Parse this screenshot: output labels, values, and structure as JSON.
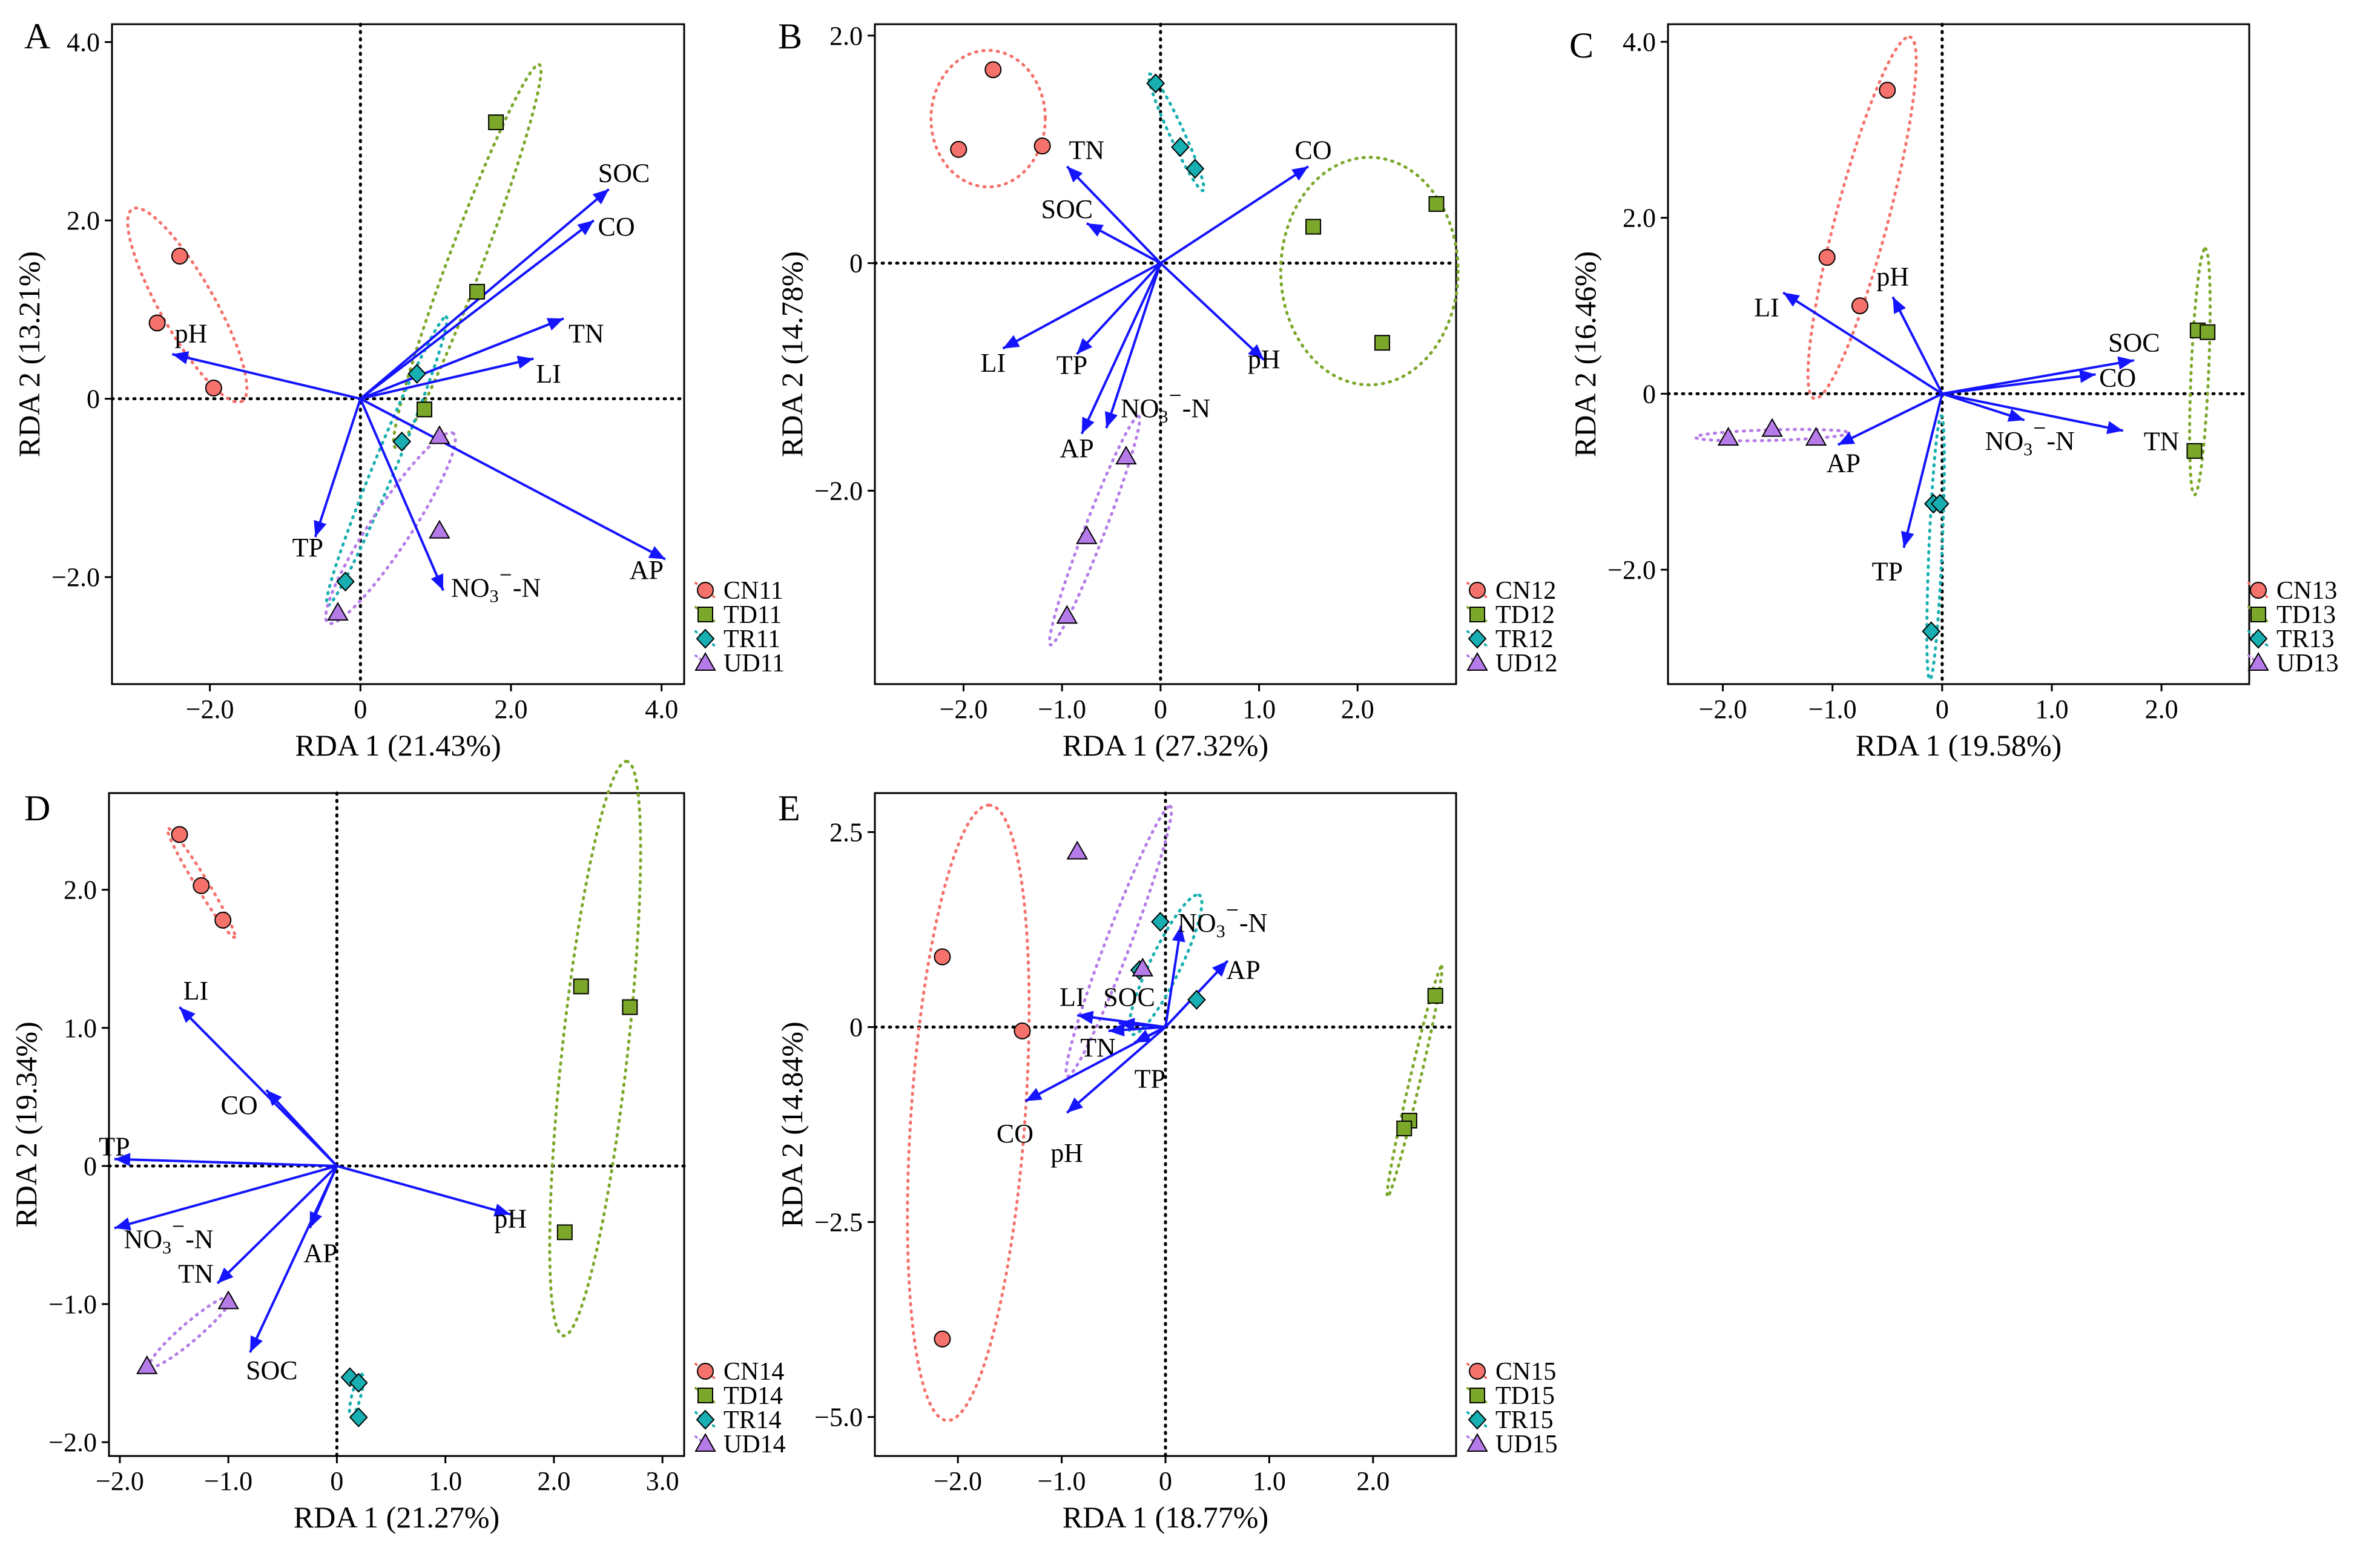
{
  "colors": {
    "CN": "#F4726B",
    "TD": "#7BA82A",
    "TR": "#17AFB1",
    "UD": "#B57BE8",
    "arrow": "#1414FF",
    "axis": "#000000"
  },
  "chart_data": [
    {
      "type": "scatter",
      "panel": "A",
      "xlabel": "RDA 1 (21.43%)",
      "ylabel": "RDA 2 (13.21%)",
      "xlim": [
        -3.3,
        4.3
      ],
      "ylim": [
        -3.2,
        4.2
      ],
      "xticks": [
        -2.0,
        0,
        2.0,
        4.0
      ],
      "xtick_labels": [
        "−2.0",
        "0",
        "2.0",
        "4.0"
      ],
      "yticks": [
        -2.0,
        0,
        2.0,
        4.0
      ],
      "ytick_labels": [
        "−2.0",
        "0",
        "2.0",
        "4.0"
      ],
      "legend": [
        "CN11",
        "TD11",
        "TR11",
        "UD11"
      ],
      "legend_position": "bottom-right outside",
      "groups": [
        {
          "name": "CN11",
          "group": "CN",
          "points": [
            [
              -2.4,
              1.6
            ],
            [
              -2.7,
              0.85
            ],
            [
              -1.95,
              0.12
            ]
          ],
          "ellipse": {
            "cx": -2.3,
            "cy": 1.05,
            "rx": 1.3,
            "ry": 0.34,
            "angle": -56
          }
        },
        {
          "name": "TD11",
          "group": "TD",
          "points": [
            [
              1.8,
              3.1
            ],
            [
              1.55,
              1.2
            ],
            [
              0.85,
              -0.12
            ]
          ],
          "ellipse": {
            "cx": 1.42,
            "cy": 1.6,
            "rx": 2.35,
            "ry": 0.22,
            "angle": 66
          }
        },
        {
          "name": "TR11",
          "group": "TR",
          "points": [
            [
              0.75,
              0.28
            ],
            [
              0.55,
              -0.48
            ],
            [
              -0.2,
              -2.05
            ]
          ],
          "ellipse": {
            "cx": 0.35,
            "cy": -0.7,
            "rx": 1.8,
            "ry": 0.14,
            "angle": 64
          }
        },
        {
          "name": "UD11",
          "group": "UD",
          "points": [
            [
              1.05,
              -0.42
            ],
            [
              1.05,
              -1.48
            ],
            [
              -0.3,
              -2.4
            ]
          ],
          "ellipse": {
            "cx": 0.4,
            "cy": -1.45,
            "rx": 1.35,
            "ry": 0.25,
            "angle": 52
          }
        }
      ],
      "vectors": [
        {
          "label": "SOC",
          "x": 3.3,
          "y": 2.35,
          "lx": 3.5,
          "ly": 2.5
        },
        {
          "label": "CO",
          "x": 3.1,
          "y": 2.0,
          "lx": 3.4,
          "ly": 1.9
        },
        {
          "label": "TN",
          "x": 2.7,
          "y": 0.9,
          "lx": 3.0,
          "ly": 0.7
        },
        {
          "label": "LI",
          "x": 2.3,
          "y": 0.45,
          "lx": 2.5,
          "ly": 0.25
        },
        {
          "label": "pH",
          "x": -2.5,
          "y": 0.5,
          "lx": -2.25,
          "ly": 0.7
        },
        {
          "label": "TP",
          "x": -0.6,
          "y": -1.55,
          "lx": -0.7,
          "ly": -1.7
        },
        {
          "label": "NO₃⁻-N",
          "x": 1.1,
          "y": -2.15,
          "lx": 1.8,
          "ly": -2.15
        },
        {
          "label": "AP",
          "x": 4.05,
          "y": -1.8,
          "lx": 3.8,
          "ly": -1.95
        }
      ]
    },
    {
      "type": "scatter",
      "panel": "B",
      "xlabel": "RDA 1 (27.32%)",
      "ylabel": "RDA 2 (14.78%)",
      "xlim": [
        -2.9,
        3.0
      ],
      "ylim": [
        -3.7,
        2.1
      ],
      "xticks": [
        -2.0,
        -1.0,
        0,
        1.0,
        2.0
      ],
      "xtick_labels": [
        "−2.0",
        "−1.0",
        "0",
        "1.0",
        "2.0"
      ],
      "yticks": [
        -2.0,
        0,
        2.0
      ],
      "ytick_labels": [
        "−2.0",
        "0",
        "2.0"
      ],
      "legend": [
        "CN12",
        "TD12",
        "TR12",
        "UD12"
      ],
      "legend_position": "bottom-right outside",
      "groups": [
        {
          "name": "CN12",
          "group": "CN",
          "points": [
            [
              -1.7,
              1.7
            ],
            [
              -2.05,
              1.0
            ],
            [
              -1.2,
              1.03
            ]
          ],
          "ellipse": {
            "cx": -1.75,
            "cy": 1.27,
            "rx": 0.58,
            "ry": 0.6,
            "angle": 0
          }
        },
        {
          "name": "TD12",
          "group": "TD",
          "points": [
            [
              1.55,
              0.32
            ],
            [
              2.8,
              0.52
            ],
            [
              2.25,
              -0.7
            ]
          ],
          "ellipse": {
            "cx": 2.12,
            "cy": -0.07,
            "rx": 0.9,
            "ry": 1.0,
            "angle": 0
          }
        },
        {
          "name": "TR12",
          "group": "TR",
          "points": [
            [
              -0.05,
              1.58
            ],
            [
              0.2,
              1.02
            ],
            [
              0.35,
              0.83
            ]
          ],
          "ellipse": {
            "cx": 0.16,
            "cy": 1.15,
            "rx": 0.58,
            "ry": 0.07,
            "angle": -62
          }
        },
        {
          "name": "UD12",
          "group": "UD",
          "points": [
            [
              -0.35,
              -1.7
            ],
            [
              -0.75,
              -2.4
            ],
            [
              -0.95,
              -3.1
            ]
          ],
          "ellipse": {
            "cx": -0.67,
            "cy": -2.35,
            "rx": 1.1,
            "ry": 0.1,
            "angle": 66
          }
        }
      ],
      "vectors": [
        {
          "label": "CO",
          "x": 1.5,
          "y": 0.85,
          "lx": 1.55,
          "ly": 0.97
        },
        {
          "label": "TN",
          "x": -0.95,
          "y": 0.85,
          "lx": -0.75,
          "ly": 0.97
        },
        {
          "label": "SOC",
          "x": -0.75,
          "y": 0.35,
          "lx": -0.95,
          "ly": 0.45
        },
        {
          "label": "LI",
          "x": -1.6,
          "y": -0.75,
          "lx": -1.7,
          "ly": -0.9
        },
        {
          "label": "TP",
          "x": -0.85,
          "y": -0.8,
          "lx": -0.9,
          "ly": -0.92
        },
        {
          "label": "pH",
          "x": 1.05,
          "y": -0.85,
          "lx": 1.05,
          "ly": -0.87
        },
        {
          "label": "NO₃⁻-N",
          "x": -0.55,
          "y": -1.45,
          "lx": 0.05,
          "ly": -1.3
        },
        {
          "label": "AP",
          "x": -0.8,
          "y": -1.5,
          "lx": -0.85,
          "ly": -1.65
        }
      ]
    },
    {
      "type": "scatter",
      "panel": "C",
      "xlabel": "RDA 1 (19.58%)",
      "ylabel": "RDA 2 (16.46%)",
      "xlim": [
        -2.5,
        2.8
      ],
      "ylim": [
        -3.3,
        4.2
      ],
      "xticks": [
        -2.0,
        -1.0,
        0,
        1.0,
        2.0
      ],
      "xtick_labels": [
        "−2.0",
        "−1.0",
        "0",
        "1.0",
        "2.0"
      ],
      "yticks": [
        -2.0,
        0,
        2.0,
        4.0
      ],
      "ytick_labels": [
        "−2.0",
        "0",
        "2.0",
        "4.0"
      ],
      "legend": [
        "CN13",
        "TD13",
        "TR13",
        "UD13"
      ],
      "legend_position": "bottom-right outside",
      "groups": [
        {
          "name": "CN13",
          "group": "CN",
          "points": [
            [
              -0.5,
              3.45
            ],
            [
              -1.05,
              1.55
            ],
            [
              -0.75,
              1.0
            ]
          ],
          "ellipse": {
            "cx": -0.73,
            "cy": 2.0,
            "rx": 2.1,
            "ry": 0.24,
            "angle": 78
          }
        },
        {
          "name": "TD13",
          "group": "TD",
          "points": [
            [
              2.33,
              0.72
            ],
            [
              2.42,
              0.7
            ],
            [
              2.3,
              -0.65
            ]
          ],
          "ellipse": {
            "cx": 2.35,
            "cy": 0.25,
            "rx": 1.4,
            "ry": 0.08,
            "angle": 88
          }
        },
        {
          "name": "TR13",
          "group": "TR",
          "points": [
            [
              -0.08,
              -1.25
            ],
            [
              -0.02,
              -1.25
            ],
            [
              -0.1,
              -2.7
            ]
          ],
          "ellipse": {
            "cx": -0.06,
            "cy": -1.75,
            "rx": 1.5,
            "ry": 0.06,
            "angle": 88
          }
        },
        {
          "name": "UD13",
          "group": "UD",
          "points": [
            [
              -1.95,
              -0.5
            ],
            [
              -1.55,
              -0.4
            ],
            [
              -1.15,
              -0.5
            ]
          ],
          "ellipse": {
            "cx": -1.55,
            "cy": -0.47,
            "rx": 0.7,
            "ry": 0.06,
            "angle": 2
          }
        }
      ],
      "vectors": [
        {
          "label": "LI",
          "x": -1.45,
          "y": 1.15,
          "lx": -1.6,
          "ly": 0.95
        },
        {
          "label": "pH",
          "x": -0.45,
          "y": 1.1,
          "lx": -0.45,
          "ly": 1.3
        },
        {
          "label": "SOC",
          "x": 1.75,
          "y": 0.38,
          "lx": 1.75,
          "ly": 0.55
        },
        {
          "label": "CO",
          "x": 1.4,
          "y": 0.22,
          "lx": 1.6,
          "ly": 0.15
        },
        {
          "label": "NO₃⁻-N",
          "x": 0.75,
          "y": -0.3,
          "lx": 0.8,
          "ly": -0.57
        },
        {
          "label": "TN",
          "x": 1.65,
          "y": -0.42,
          "lx": 2.0,
          "ly": -0.57
        },
        {
          "label": "AP",
          "x": -0.95,
          "y": -0.58,
          "lx": -0.9,
          "ly": -0.82
        },
        {
          "label": "TP",
          "x": -0.35,
          "y": -1.75,
          "lx": -0.5,
          "ly": -2.05
        }
      ]
    },
    {
      "type": "scatter",
      "panel": "D",
      "xlabel": "RDA 1 (21.27%)",
      "ylabel": "RDA 2 (19.34%)",
      "xlim": [
        -2.1,
        3.2
      ],
      "ylim": [
        -2.1,
        2.7
      ],
      "xticks": [
        -2.0,
        -1.0,
        0,
        1.0,
        2.0,
        3.0
      ],
      "xtick_labels": [
        "−2.0",
        "−1.0",
        "0",
        "1.0",
        "2.0",
        "3.0"
      ],
      "yticks": [
        -2.0,
        -1.0,
        0,
        1.0,
        2.0
      ],
      "ytick_labels": [
        "−2.0",
        "−1.0",
        "0",
        "1.0",
        "2.0"
      ],
      "legend": [
        "CN14",
        "TD14",
        "TR14",
        "UD14"
      ],
      "legend_position": "bottom-right outside",
      "groups": [
        {
          "name": "CN14",
          "group": "CN",
          "points": [
            [
              -1.45,
              2.4
            ],
            [
              -1.25,
              2.03
            ],
            [
              -1.05,
              1.78
            ]
          ],
          "ellipse": {
            "cx": -1.25,
            "cy": 2.05,
            "rx": 0.5,
            "ry": 0.05,
            "angle": -52
          }
        },
        {
          "name": "TD14",
          "group": "TD",
          "points": [
            [
              2.25,
              1.3
            ],
            [
              2.7,
              1.15
            ],
            [
              2.1,
              -0.48
            ]
          ],
          "ellipse": {
            "cx": 2.38,
            "cy": 0.85,
            "rx": 2.1,
            "ry": 0.3,
            "angle": 82
          }
        },
        {
          "name": "TR14",
          "group": "TR",
          "points": [
            [
              0.12,
              -1.53
            ],
            [
              0.2,
              -1.57
            ],
            [
              0.2,
              -1.82
            ]
          ],
          "ellipse": {
            "cx": 0.18,
            "cy": -1.66,
            "rx": 0.16,
            "ry": 0.04,
            "angle": 72
          }
        },
        {
          "name": "UD14",
          "group": "UD",
          "points": [
            [
              -1.0,
              -0.98
            ],
            [
              -1.75,
              -1.45
            ]
          ],
          "ellipse": {
            "cx": -1.35,
            "cy": -1.2,
            "rx": 0.45,
            "ry": 0.07,
            "angle": 34
          }
        }
      ],
      "vectors": [
        {
          "label": "LI",
          "x": -1.45,
          "y": 1.15,
          "lx": -1.3,
          "ly": 1.25
        },
        {
          "label": "CO",
          "x": -0.65,
          "y": 0.55,
          "lx": -0.9,
          "ly": 0.42
        },
        {
          "label": "TP",
          "x": -2.05,
          "y": 0.05,
          "lx": -2.05,
          "ly": 0.12
        },
        {
          "label": "pH",
          "x": 1.6,
          "y": -0.35,
          "lx": 1.6,
          "ly": -0.4
        },
        {
          "label": "NO₃⁻-N",
          "x": -2.05,
          "y": -0.45,
          "lx": -1.55,
          "ly": -0.55
        },
        {
          "label": "TN",
          "x": -1.1,
          "y": -0.85,
          "lx": -1.3,
          "ly": -0.8
        },
        {
          "label": "AP",
          "x": -0.25,
          "y": -0.45,
          "lx": -0.15,
          "ly": -0.65
        },
        {
          "label": "SOC",
          "x": -0.8,
          "y": -1.35,
          "lx": -0.6,
          "ly": -1.5
        }
      ]
    },
    {
      "type": "scatter",
      "panel": "E",
      "xlabel": "RDA 1 (18.77%)",
      "ylabel": "RDA 2 (14.84%)",
      "xlim": [
        -2.8,
        2.8
      ],
      "ylim": [
        -5.5,
        3.0
      ],
      "xticks": [
        -2.0,
        -1.0,
        0,
        1.0,
        2.0
      ],
      "xtick_labels": [
        "−2.0",
        "−1.0",
        "0",
        "1.0",
        "2.0"
      ],
      "yticks": [
        -5.0,
        -2.5,
        0,
        2.5
      ],
      "ytick_labels": [
        "−5.0",
        "−2.5",
        "0",
        "2.5"
      ],
      "legend": [
        "CN15",
        "TD15",
        "TR15",
        "UD15"
      ],
      "legend_position": "bottom-right outside",
      "groups": [
        {
          "name": "CN15",
          "group": "CN",
          "points": [
            [
              -2.15,
              0.9
            ],
            [
              -1.38,
              -0.05
            ],
            [
              -2.15,
              -4.0
            ]
          ],
          "ellipse": {
            "cx": -1.9,
            "cy": -1.1,
            "rx": 3.95,
            "ry": 0.55,
            "angle": 87
          }
        },
        {
          "name": "TD15",
          "group": "TD",
          "points": [
            [
              2.6,
              0.4
            ],
            [
              2.35,
              -1.2
            ],
            [
              2.3,
              -1.3
            ]
          ],
          "ellipse": {
            "cx": 2.4,
            "cy": -0.7,
            "rx": 1.5,
            "ry": 0.05,
            "angle": 80
          }
        },
        {
          "name": "TR15",
          "group": "TR",
          "points": [
            [
              -0.05,
              1.35
            ],
            [
              -0.25,
              0.73
            ],
            [
              0.3,
              0.35
            ]
          ],
          "ellipse": {
            "cx": 0.0,
            "cy": 0.8,
            "rx": 0.95,
            "ry": 0.15,
            "angle": 70
          }
        },
        {
          "name": "UD15",
          "group": "UD",
          "points": [
            [
              -0.85,
              2.25
            ],
            [
              -0.22,
              0.75
            ]
          ],
          "ellipse": {
            "cx": -0.45,
            "cy": 1.1,
            "rx": 1.8,
            "ry": 0.12,
            "angle": 74
          }
        }
      ],
      "vectors": [
        {
          "label": "NO₃⁻-N",
          "x": 0.15,
          "y": 1.3,
          "lx": 0.55,
          "ly": 1.3
        },
        {
          "label": "AP",
          "x": 0.6,
          "y": 0.85,
          "lx": 0.75,
          "ly": 0.7
        },
        {
          "label": "LI",
          "x": -0.85,
          "y": 0.15,
          "lx": -0.9,
          "ly": 0.35
        },
        {
          "label": "SOC",
          "x": -0.45,
          "y": 0.05,
          "lx": -0.35,
          "ly": 0.35
        },
        {
          "label": "TN",
          "x": -0.55,
          "y": -0.05,
          "lx": -0.65,
          "ly": -0.3
        },
        {
          "label": "TP",
          "x": -0.3,
          "y": -0.2,
          "lx": -0.15,
          "ly": -0.7
        },
        {
          "label": "CO",
          "x": -1.35,
          "y": -0.95,
          "lx": -1.45,
          "ly": -1.4
        },
        {
          "label": "pH",
          "x": -0.95,
          "y": -1.1,
          "lx": -0.95,
          "ly": -1.65
        }
      ]
    }
  ]
}
